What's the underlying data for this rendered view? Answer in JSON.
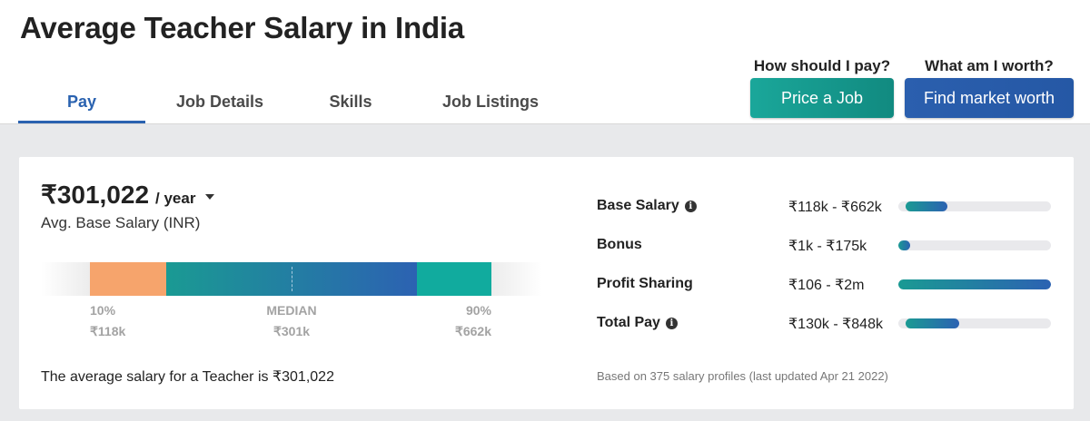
{
  "header": {
    "title": "Average Teacher Salary in India",
    "tabs": [
      {
        "label": "Pay"
      },
      {
        "label": "Job Details"
      },
      {
        "label": "Skills"
      },
      {
        "label": "Job Listings"
      }
    ],
    "active_tab": "Pay",
    "cta_left": {
      "question": "How should I pay?",
      "button": "Price a Job"
    },
    "cta_right": {
      "question": "What am I worth?",
      "button": "Find market worth"
    }
  },
  "summary": {
    "amount": "₹301,022",
    "period": "/ year",
    "subtitle": "Avg. Base Salary (INR)",
    "percentile_10_label": "10%",
    "percentile_10_value": "₹118k",
    "median_label": "MEDIAN",
    "median_value": "₹301k",
    "percentile_90_label": "90%",
    "percentile_90_value": "₹662k",
    "average_text": "The average salary for a Teacher is ₹301,022"
  },
  "compensation": [
    {
      "name": "Base Salary",
      "info": true,
      "range": "₹118k - ₹662k",
      "bar_start": 0.05,
      "bar_end": 0.32
    },
    {
      "name": "Bonus",
      "info": false,
      "range": "₹1k - ₹175k",
      "bar_start": 0.0,
      "bar_end": 0.08
    },
    {
      "name": "Profit Sharing",
      "info": false,
      "range": "₹106 - ₹2m",
      "bar_start": 0.0,
      "bar_end": 1.0
    },
    {
      "name": "Total Pay",
      "info": true,
      "range": "₹130k - ₹848k",
      "bar_start": 0.05,
      "bar_end": 0.4
    }
  ],
  "based_on": "Based on 375 salary profiles (last updated Apr 21 2022)",
  "colors": {
    "accent_blue": "#2a62b0",
    "teal": "#1aa79a",
    "orange": "#f6a46c"
  }
}
